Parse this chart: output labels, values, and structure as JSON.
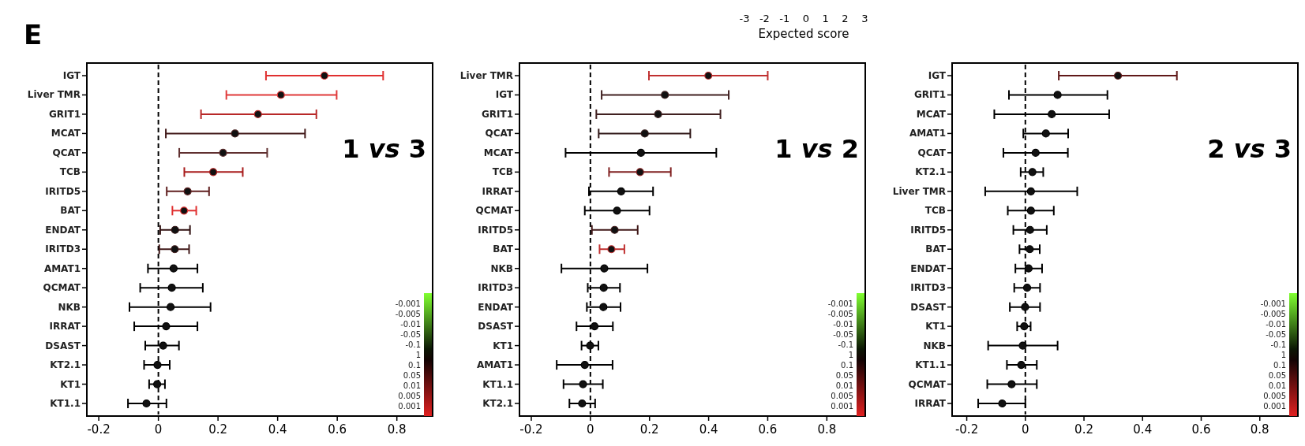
{
  "chart_data": [
    {
      "type": "other",
      "annotations": [
        "E",
        "-3   -2   -1    0    1    2    3",
        "Expected score"
      ]
    },
    {
      "type": "scatter",
      "title": "1 vs 3",
      "orientation": "horizontal",
      "marker": "circle",
      "categories": [
        "IGT",
        "Liver TMR",
        "GRIT1",
        "MCAT",
        "QCAT",
        "TCB",
        "IRITD5",
        "BAT",
        "ENDAT",
        "IRITD3",
        "AMAT1",
        "QCMAT",
        "NKB",
        "IRRAT",
        "DSAST",
        "KT2.1",
        "KT1",
        "KT1.1"
      ],
      "values": [
        0.557,
        0.411,
        0.334,
        0.257,
        0.217,
        0.184,
        0.098,
        0.086,
        0.056,
        0.055,
        0.051,
        0.045,
        0.041,
        0.026,
        0.016,
        -0.003,
        -0.004,
        -0.04
      ],
      "errors": [
        [
          0.361,
          0.754
        ],
        [
          0.228,
          0.598
        ],
        [
          0.143,
          0.53
        ],
        [
          0.025,
          0.492
        ],
        [
          0.07,
          0.365
        ],
        [
          0.087,
          0.283
        ],
        [
          0.028,
          0.17
        ],
        [
          0.047,
          0.127
        ],
        [
          0.006,
          0.106
        ],
        [
          0.003,
          0.103
        ],
        [
          -0.035,
          0.131
        ],
        [
          -0.061,
          0.149
        ],
        [
          -0.097,
          0.175
        ],
        [
          -0.081,
          0.131
        ],
        [
          -0.044,
          0.069
        ],
        [
          -0.048,
          0.038
        ],
        [
          -0.031,
          0.022
        ],
        [
          -0.102,
          0.027
        ]
      ],
      "colors": [
        "#e03030",
        "#e03a3a",
        "#b82828",
        "#401818",
        "#603030",
        "#a81c1c",
        "#602020",
        "#e03030",
        "#301010",
        "#401818",
        "#000000",
        "#000000",
        "#000000",
        "#000000",
        "#000000",
        "#000000",
        "#000000",
        "#000000"
      ],
      "xlim": [
        -0.24,
        0.92
      ],
      "xticks": [
        -0.2,
        0,
        0.2,
        0.4,
        0.6,
        0.8
      ],
      "grid": false,
      "ref_lines": [
        {
          "axis": "x",
          "value": 0,
          "line_style": "dashed",
          "color": "#000000"
        }
      ],
      "annotations": [
        "-0.001",
        "-0.005",
        "-0.01",
        "-0.05",
        "-0.1",
        "1",
        "0.1",
        "0.05",
        "0.01",
        "0.005",
        "0.001"
      ]
    },
    {
      "type": "scatter",
      "title": "1 vs 2",
      "orientation": "horizontal",
      "marker": "circle",
      "categories": [
        "Liver TMR",
        "IGT",
        "GRIT1",
        "QCAT",
        "MCAT",
        "TCB",
        "IRRAT",
        "QCMAT",
        "IRITD5",
        "BAT",
        "NKB",
        "IRITD3",
        "ENDAT",
        "DSAST",
        "KT1",
        "AMAT1",
        "KT1.1",
        "KT2.1"
      ],
      "values": [
        0.399,
        0.252,
        0.229,
        0.184,
        0.171,
        0.168,
        0.104,
        0.09,
        0.082,
        0.071,
        0.047,
        0.045,
        0.044,
        0.014,
        -0.001,
        -0.019,
        -0.025,
        -0.028
      ],
      "errors": [
        [
          0.198,
          0.6
        ],
        [
          0.038,
          0.468
        ],
        [
          0.02,
          0.44
        ],
        [
          0.028,
          0.338
        ],
        [
          -0.084,
          0.426
        ],
        [
          0.063,
          0.272
        ],
        [
          -0.005,
          0.212
        ],
        [
          -0.019,
          0.2
        ],
        [
          0.005,
          0.16
        ],
        [
          0.031,
          0.115
        ],
        [
          -0.098,
          0.193
        ],
        [
          -0.009,
          0.1
        ],
        [
          -0.012,
          0.102
        ],
        [
          -0.047,
          0.076
        ],
        [
          -0.03,
          0.027
        ],
        [
          -0.114,
          0.075
        ],
        [
          -0.091,
          0.042
        ],
        [
          -0.071,
          0.016
        ]
      ],
      "colors": [
        "#c03030",
        "#402020",
        "#402020",
        "#301818",
        "#000000",
        "#802020",
        "#000000",
        "#000000",
        "#401818",
        "#c03030",
        "#000000",
        "#000000",
        "#000000",
        "#000000",
        "#000000",
        "#000000",
        "#000000",
        "#000000"
      ],
      "xlim": [
        -0.24,
        0.93
      ],
      "xticks": [
        -0.2,
        0,
        0.2,
        0.4,
        0.6,
        0.8
      ],
      "grid": false,
      "ref_lines": [
        {
          "axis": "x",
          "value": 0,
          "line_style": "dashed",
          "color": "#000000"
        }
      ],
      "annotations": [
        "-0.001",
        "-0.005",
        "-0.01",
        "-0.05",
        "-0.1",
        "1",
        "0.1",
        "0.05",
        "0.01",
        "0.005",
        "0.001"
      ]
    },
    {
      "type": "scatter",
      "title": "2 vs 3",
      "orientation": "horizontal",
      "marker": "circle",
      "categories": [
        "IGT",
        "GRIT1",
        "MCAT",
        "AMAT1",
        "QCAT",
        "KT2.1",
        "Liver TMR",
        "TCB",
        "IRITD5",
        "BAT",
        "ENDAT",
        "IRITD3",
        "DSAST",
        "KT1",
        "NKB",
        "KT1.1",
        "QCMAT",
        "IRRAT"
      ],
      "values": [
        0.316,
        0.11,
        0.09,
        0.07,
        0.035,
        0.024,
        0.019,
        0.019,
        0.016,
        0.015,
        0.011,
        0.006,
        -0.001,
        -0.004,
        -0.009,
        -0.014,
        -0.047,
        -0.079
      ],
      "errors": [
        [
          0.114,
          0.517
        ],
        [
          -0.056,
          0.28
        ],
        [
          -0.106,
          0.286
        ],
        [
          -0.007,
          0.146
        ],
        [
          -0.075,
          0.145
        ],
        [
          -0.016,
          0.061
        ],
        [
          -0.137,
          0.177
        ],
        [
          -0.06,
          0.097
        ],
        [
          -0.041,
          0.073
        ],
        [
          -0.02,
          0.049
        ],
        [
          -0.034,
          0.057
        ],
        [
          -0.038,
          0.05
        ],
        [
          -0.053,
          0.05
        ],
        [
          -0.028,
          0.018
        ],
        [
          -0.127,
          0.11
        ],
        [
          -0.063,
          0.039
        ],
        [
          -0.13,
          0.039
        ],
        [
          -0.161,
          0.0
        ]
      ],
      "colors": [
        "#601818",
        "#000000",
        "#000000",
        "#000000",
        "#000000",
        "#000000",
        "#000000",
        "#000000",
        "#000000",
        "#000000",
        "#000000",
        "#000000",
        "#000000",
        "#000000",
        "#000000",
        "#000000",
        "#000000",
        "#000000"
      ],
      "xlim": [
        -0.25,
        0.93
      ],
      "xticks": [
        -0.2,
        0,
        0.2,
        0.4,
        0.6,
        0.8
      ],
      "grid": false,
      "ref_lines": [
        {
          "axis": "x",
          "value": 0,
          "line_style": "dashed",
          "color": "#000000"
        }
      ],
      "annotations": [
        "-0.001",
        "-0.005",
        "-0.01",
        "-0.05",
        "-0.1",
        "1",
        "0.1",
        "0.05",
        "0.01",
        "0.005",
        "0.001"
      ]
    }
  ]
}
